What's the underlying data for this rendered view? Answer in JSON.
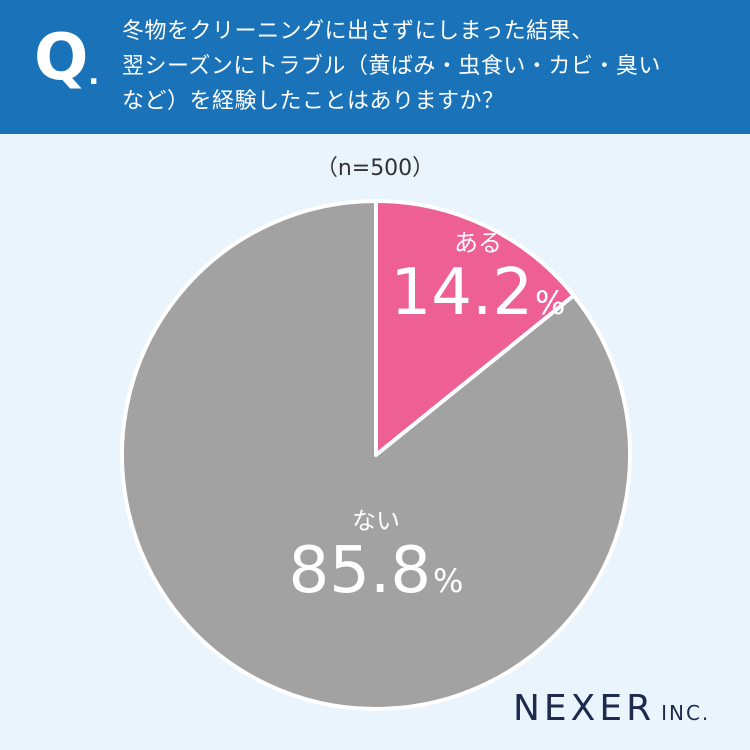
{
  "header": {
    "q_label": "Q",
    "q_dot": ".",
    "question": "冬物をクリーニングに出さずにしまった結果、\n翌シーズンにトラブル（黄ばみ・虫食い・カビ・臭い\nなど）を経験したことはありますか？"
  },
  "chart_data": {
    "type": "pie",
    "sample_size": "（n=500）",
    "start_angle": "12 o'clock",
    "direction": "clockwise",
    "unit": "%",
    "slices": [
      {
        "label": "ある",
        "value": 14.2,
        "value_text": "14.2",
        "color": "#ee5f94"
      },
      {
        "label": "ない",
        "value": 85.8,
        "value_text": "85.8",
        "color": "#a2a2a2"
      }
    ]
  },
  "logo": {
    "main": "NEXER",
    "sub": "INC.",
    "color": "#1d2a4d"
  },
  "colors": {
    "header_bg": "#1a72b8",
    "page_bg": "#eaf4fc"
  }
}
